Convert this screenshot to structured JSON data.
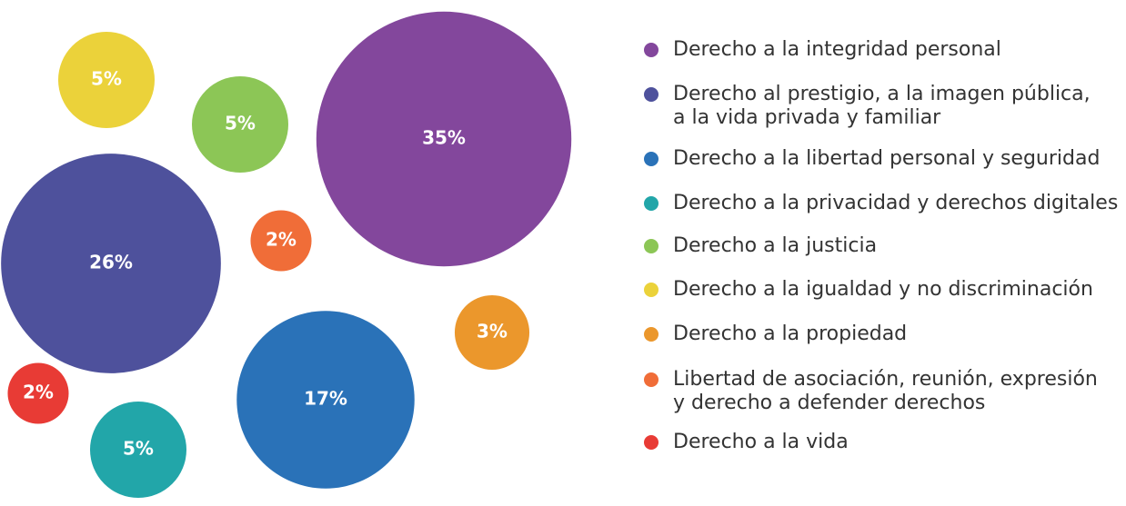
{
  "chart_data": {
    "type": "packed_bubble",
    "categories": [
      "Derecho a la integridad personal",
      "Derecho al prestigio, a la imagen pública,\na la vida privada y familiar",
      "Derecho a la libertad personal y seguridad",
      "Derecho a la privacidad y derechos digitales",
      "Derecho a la justicia",
      "Derecho a la igualdad y no discriminación",
      "Derecho a la propiedad",
      "Libertad de asociación, reunión, expresión\ny derecho a defender derechos",
      "Derecho a la vida"
    ],
    "values": [
      35,
      26,
      17,
      5,
      5,
      5,
      3,
      2,
      2
    ],
    "value_labels": [
      "35%",
      "26%",
      "17%",
      "5%",
      "5%",
      "5%",
      "3%",
      "2%",
      "2%"
    ],
    "colors": [
      "#83479c",
      "#4e519c",
      "#2a72b8",
      "#22a6a9",
      "#8cc656",
      "#ebd23a",
      "#eb972c",
      "#f06d38",
      "#e83b35"
    ]
  }
}
